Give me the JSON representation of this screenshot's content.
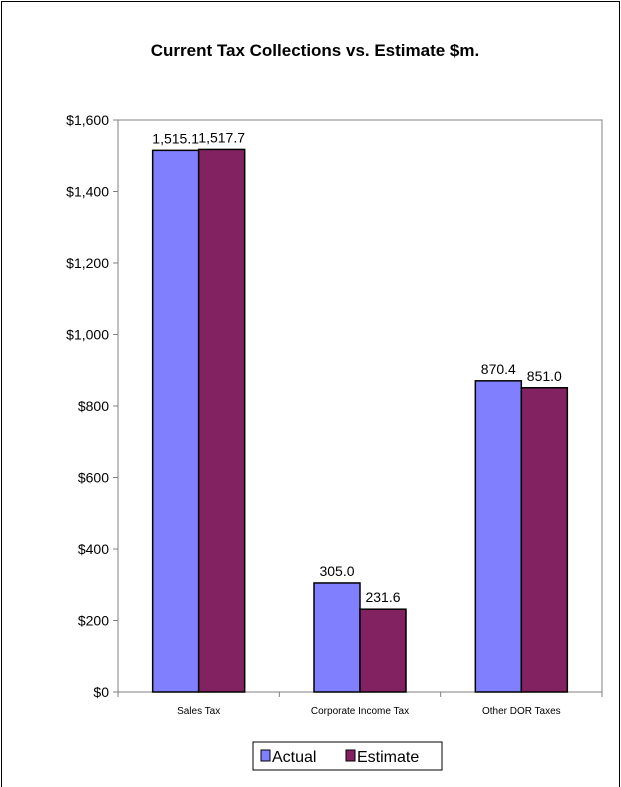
{
  "chart_data": {
    "type": "bar",
    "title": "Current Tax Collections vs. Estimate $m.",
    "xlabel": "",
    "ylabel": "",
    "categories": [
      "Sales Tax",
      "Corporate Income Tax",
      "Other DOR Taxes"
    ],
    "series": [
      {
        "name": "Actual",
        "values": [
          1515.1,
          305.0,
          870.4
        ],
        "labels": [
          "1,515.1",
          "305.0",
          "870.4"
        ],
        "color": "#8080ff"
      },
      {
        "name": "Estimate",
        "values": [
          1517.7,
          231.6,
          851.0
        ],
        "labels": [
          "1,517.7",
          "231.6",
          "851.0"
        ],
        "color": "#822260"
      }
    ],
    "ylim": [
      0,
      1600
    ],
    "yticks": [
      0,
      200,
      400,
      600,
      800,
      1000,
      1200,
      1400,
      1600
    ],
    "ytick_labels": [
      "$0",
      "$200",
      "$400",
      "$600",
      "$800",
      "$1,000",
      "$1,200",
      "$1,400",
      "$1,600"
    ],
    "grid": false,
    "legend_position": "bottom",
    "plot_background": "#ffffff",
    "axis_color": "#808080"
  }
}
